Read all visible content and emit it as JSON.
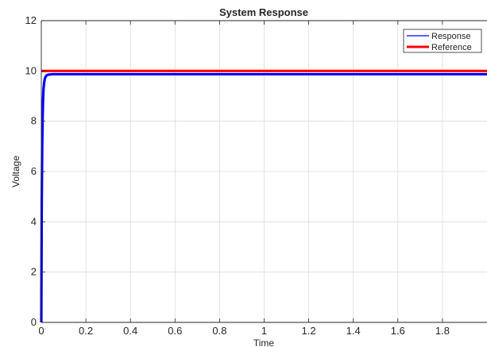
{
  "chart_data": {
    "type": "line",
    "title": "System Response",
    "xlabel": "Time",
    "ylabel": "Voltage",
    "xlim": [
      0,
      2
    ],
    "ylim": [
      0,
      12
    ],
    "xticks": [
      "0",
      "0.2",
      "0.4",
      "0.6",
      "0.8",
      "1",
      "1.2",
      "1.4",
      "1.6",
      "1.8"
    ],
    "yticks": [
      "0",
      "2",
      "4",
      "6",
      "8",
      "10",
      "12"
    ],
    "grid": true,
    "legend_position": "top-right",
    "series": [
      {
        "name": "Response",
        "color": "#0000ff",
        "x": [
          0,
          0.001,
          0.002,
          0.004,
          0.006,
          0.008,
          0.01,
          0.013,
          0.016,
          0.02,
          0.025,
          0.03,
          0.04,
          0.05,
          0.1,
          0.5,
          1.0,
          1.5,
          2.0
        ],
        "y": [
          0,
          2.6,
          4.8,
          7.0,
          8.2,
          8.9,
          9.3,
          9.55,
          9.7,
          9.78,
          9.83,
          9.85,
          9.86,
          9.87,
          9.87,
          9.87,
          9.87,
          9.87,
          9.87
        ]
      },
      {
        "name": "Reference",
        "color": "#ff0000",
        "x": [
          0,
          2.0
        ],
        "y": [
          10,
          10
        ]
      }
    ]
  }
}
